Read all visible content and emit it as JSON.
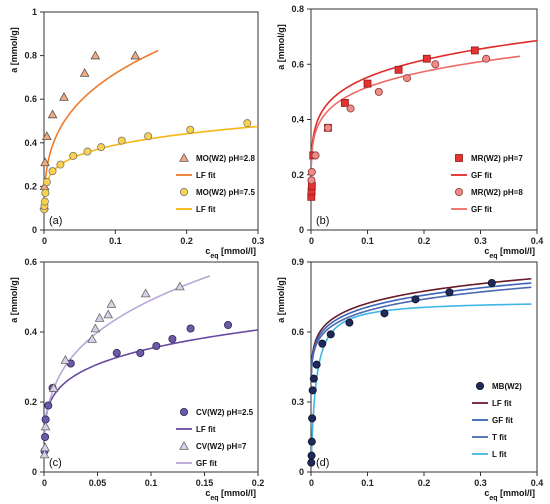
{
  "chart_data": [
    {
      "type": "scatter",
      "panel_label": "(a)",
      "xlabel": "c_eq [mmol/l]",
      "ylabel": "a [mmol/g]",
      "xlim": [
        0,
        0.3
      ],
      "ylim": [
        0,
        1
      ],
      "xticks": [
        0,
        0.1,
        0.2,
        0.3
      ],
      "yticks": [
        0,
        0.2,
        0.4,
        0.6,
        0.8,
        1
      ],
      "xtick_labels": [
        "0",
        "0.1",
        "0.2",
        "0.3"
      ],
      "ytick_labels": [
        "0",
        "0.2",
        "0.4",
        "0.6",
        "0.8",
        "1"
      ],
      "grid": false,
      "legend_position": "bottom-right",
      "series": [
        {
          "name": "MO(W2) pH=2.8",
          "kind": "points",
          "marker": "triangle",
          "color": "#f4a97f",
          "edge": "#555555",
          "x": [
            0.0003,
            0.0008,
            0.0015,
            0.004,
            0.012,
            0.028,
            0.057,
            0.072,
            0.128
          ],
          "y": [
            0.11,
            0.2,
            0.31,
            0.43,
            0.53,
            0.61,
            0.72,
            0.8,
            0.8
          ]
        },
        {
          "name": "LF fit",
          "kind": "line",
          "color": "#ef7b2a",
          "curve": "freundlich",
          "x": [
            0.0005,
            0.16
          ],
          "params": [
            1.4,
            0.29
          ]
        },
        {
          "name": "MO(W2) pH=7.5",
          "kind": "points",
          "marker": "circle",
          "color": "#fcd24a",
          "edge": "#777777",
          "x": [
            0.0003,
            0.0006,
            0.0012,
            0.002,
            0.004,
            0.012,
            0.023,
            0.041,
            0.061,
            0.08,
            0.109,
            0.146,
            0.205,
            0.285
          ],
          "y": [
            0.095,
            0.11,
            0.13,
            0.17,
            0.22,
            0.27,
            0.3,
            0.34,
            0.36,
            0.38,
            0.41,
            0.43,
            0.46,
            0.49
          ]
        },
        {
          "name": "LF fit",
          "kind": "line",
          "color": "#f6b713",
          "curve": "freundlich",
          "x": [
            0.0005,
            0.3
          ],
          "params": [
            0.59,
            0.18
          ]
        }
      ]
    },
    {
      "type": "scatter",
      "panel_label": "(b)",
      "xlabel": "c_eq [mmol/l]",
      "ylabel": "a [mmol/g]",
      "xlim": [
        0,
        0.4
      ],
      "ylim": [
        0,
        0.8
      ],
      "xticks": [
        0,
        0.1,
        0.2,
        0.3,
        0.4
      ],
      "yticks": [
        0,
        0.2,
        0.4,
        0.6,
        0.8
      ],
      "xtick_labels": [
        "0",
        "0.1",
        "0.2",
        "0.3",
        "0.4"
      ],
      "ytick_labels": [
        "0",
        "0.2",
        "0.4",
        "0.6",
        "0.8"
      ],
      "grid": false,
      "legend_position": "bottom-right",
      "series": [
        {
          "name": "MR(W2) pH=7",
          "kind": "points",
          "marker": "square",
          "color": "#e8322f",
          "edge": "#8a1c1a",
          "x": [
            0.0005,
            0.001,
            0.0015,
            0.004,
            0.03,
            0.06,
            0.1,
            0.155,
            0.205,
            0.29
          ],
          "y": [
            0.12,
            0.14,
            0.16,
            0.27,
            0.37,
            0.46,
            0.53,
            0.58,
            0.62,
            0.65
          ]
        },
        {
          "name": "GF fit",
          "kind": "line",
          "color": "#e02a28",
          "curve": "freundlich",
          "x": [
            0.0004,
            0.4
          ],
          "params": [
            0.79,
            0.155
          ]
        },
        {
          "name": "MR(W2) pH=8",
          "kind": "points",
          "marker": "circle",
          "color": "#f08a87",
          "edge": "#8a3a38",
          "x": [
            0.0008,
            0.0015,
            0.008,
            0.03,
            0.07,
            0.12,
            0.17,
            0.22,
            0.31
          ],
          "y": [
            0.18,
            0.21,
            0.27,
            0.37,
            0.44,
            0.5,
            0.55,
            0.6,
            0.62
          ]
        },
        {
          "name": "GF fit",
          "kind": "line",
          "color": "#ee6a66",
          "curve": "freundlich",
          "x": [
            0.0004,
            0.37
          ],
          "params": [
            0.73,
            0.15
          ]
        }
      ]
    },
    {
      "type": "scatter",
      "panel_label": "(c)",
      "xlabel": "c_eq [mmol/l]",
      "ylabel": "a [mmol/g]",
      "xlim": [
        0,
        0.2
      ],
      "ylim": [
        0,
        0.6
      ],
      "xticks": [
        0,
        0.05,
        0.1,
        0.15,
        0.2
      ],
      "yticks": [
        0,
        0.2,
        0.4,
        0.6
      ],
      "xtick_labels": [
        "0",
        "0.05",
        "0.1",
        "0.15",
        "0.2"
      ],
      "ytick_labels": [
        "0",
        "0.2",
        "0.4",
        "0.6"
      ],
      "grid": false,
      "legend_position": "bottom-right",
      "series": [
        {
          "name": "CV(W2) pH=2.5",
          "kind": "points",
          "marker": "circle",
          "color": "#6b5aa8",
          "edge": "#2e2456",
          "x": [
            0.0005,
            0.001,
            0.0015,
            0.004,
            0.008,
            0.025,
            0.068,
            0.09,
            0.105,
            0.12,
            0.137,
            0.172
          ],
          "y": [
            0.06,
            0.1,
            0.15,
            0.19,
            0.24,
            0.31,
            0.34,
            0.34,
            0.36,
            0.38,
            0.41,
            0.42
          ]
        },
        {
          "name": "LF fit",
          "kind": "line",
          "color": "#6a4aa0",
          "curve": "freundlich",
          "x": [
            0.0005,
            0.2
          ],
          "params": [
            0.56,
            0.2
          ]
        },
        {
          "name": "CV(W2) pH=7",
          "kind": "points",
          "marker": "triangle",
          "color": "#d6d1e6",
          "edge": "#666666",
          "x": [
            0.0005,
            0.001,
            0.0015,
            0.009,
            0.02,
            0.045,
            0.048,
            0.052,
            0.06,
            0.063,
            0.095,
            0.127
          ],
          "y": [
            0.05,
            0.07,
            0.13,
            0.24,
            0.32,
            0.38,
            0.41,
            0.44,
            0.45,
            0.48,
            0.51,
            0.53
          ]
        },
        {
          "name": "GF fit",
          "kind": "line",
          "color": "#b8a8d6",
          "curve": "freundlich",
          "x": [
            0.0005,
            0.155
          ],
          "params": [
            0.98,
            0.3
          ]
        }
      ]
    },
    {
      "type": "scatter",
      "panel_label": "(d)",
      "xlabel": "c_eq [mmol/l]",
      "ylabel": "a [mmol/g]",
      "xlim": [
        0,
        0.4
      ],
      "ylim": [
        0,
        0.9
      ],
      "xticks": [
        0,
        0.1,
        0.2,
        0.3,
        0.4
      ],
      "yticks": [
        0,
        0.3,
        0.6,
        0.9
      ],
      "xtick_labels": [
        "0",
        "0.1",
        "0.2",
        "0.3",
        "0.4"
      ],
      "ytick_labels": [
        "0",
        "0.3",
        "0.6",
        "0.9"
      ],
      "grid": false,
      "legend_position": "bottom-right",
      "series": [
        {
          "name": "MB(W2)",
          "kind": "points",
          "marker": "circle",
          "color": "#1f2a5a",
          "edge": "#0a0f26",
          "x": [
            0.0005,
            0.001,
            0.0015,
            0.002,
            0.003,
            0.005,
            0.01,
            0.02,
            0.035,
            0.068,
            0.13,
            0.185,
            0.245,
            0.32
          ],
          "y": [
            0.04,
            0.07,
            0.13,
            0.23,
            0.35,
            0.4,
            0.46,
            0.55,
            0.59,
            0.64,
            0.68,
            0.74,
            0.77,
            0.81
          ]
        },
        {
          "name": "LF fit",
          "kind": "line",
          "color": "#6a1a2a",
          "curve": "freundlich",
          "x": [
            0.0005,
            0.39
          ],
          "params": [
            0.91,
            0.1
          ]
        },
        {
          "name": "GF fit",
          "kind": "line",
          "color": "#3a64b8",
          "curve": "freundlich",
          "x": [
            0.0005,
            0.39
          ],
          "params": [
            0.89,
            0.1
          ]
        },
        {
          "name": "T fit",
          "kind": "line",
          "color": "#4a6ab0",
          "curve": "freundlich",
          "x": [
            0.0005,
            0.39
          ],
          "params": [
            0.87,
            0.1
          ]
        },
        {
          "name": "L fit",
          "kind": "line",
          "color": "#3fb5e8",
          "curve": "langmuir",
          "x": [
            0.0003,
            0.39
          ],
          "params": [
            0.735,
            120
          ]
        }
      ]
    }
  ]
}
